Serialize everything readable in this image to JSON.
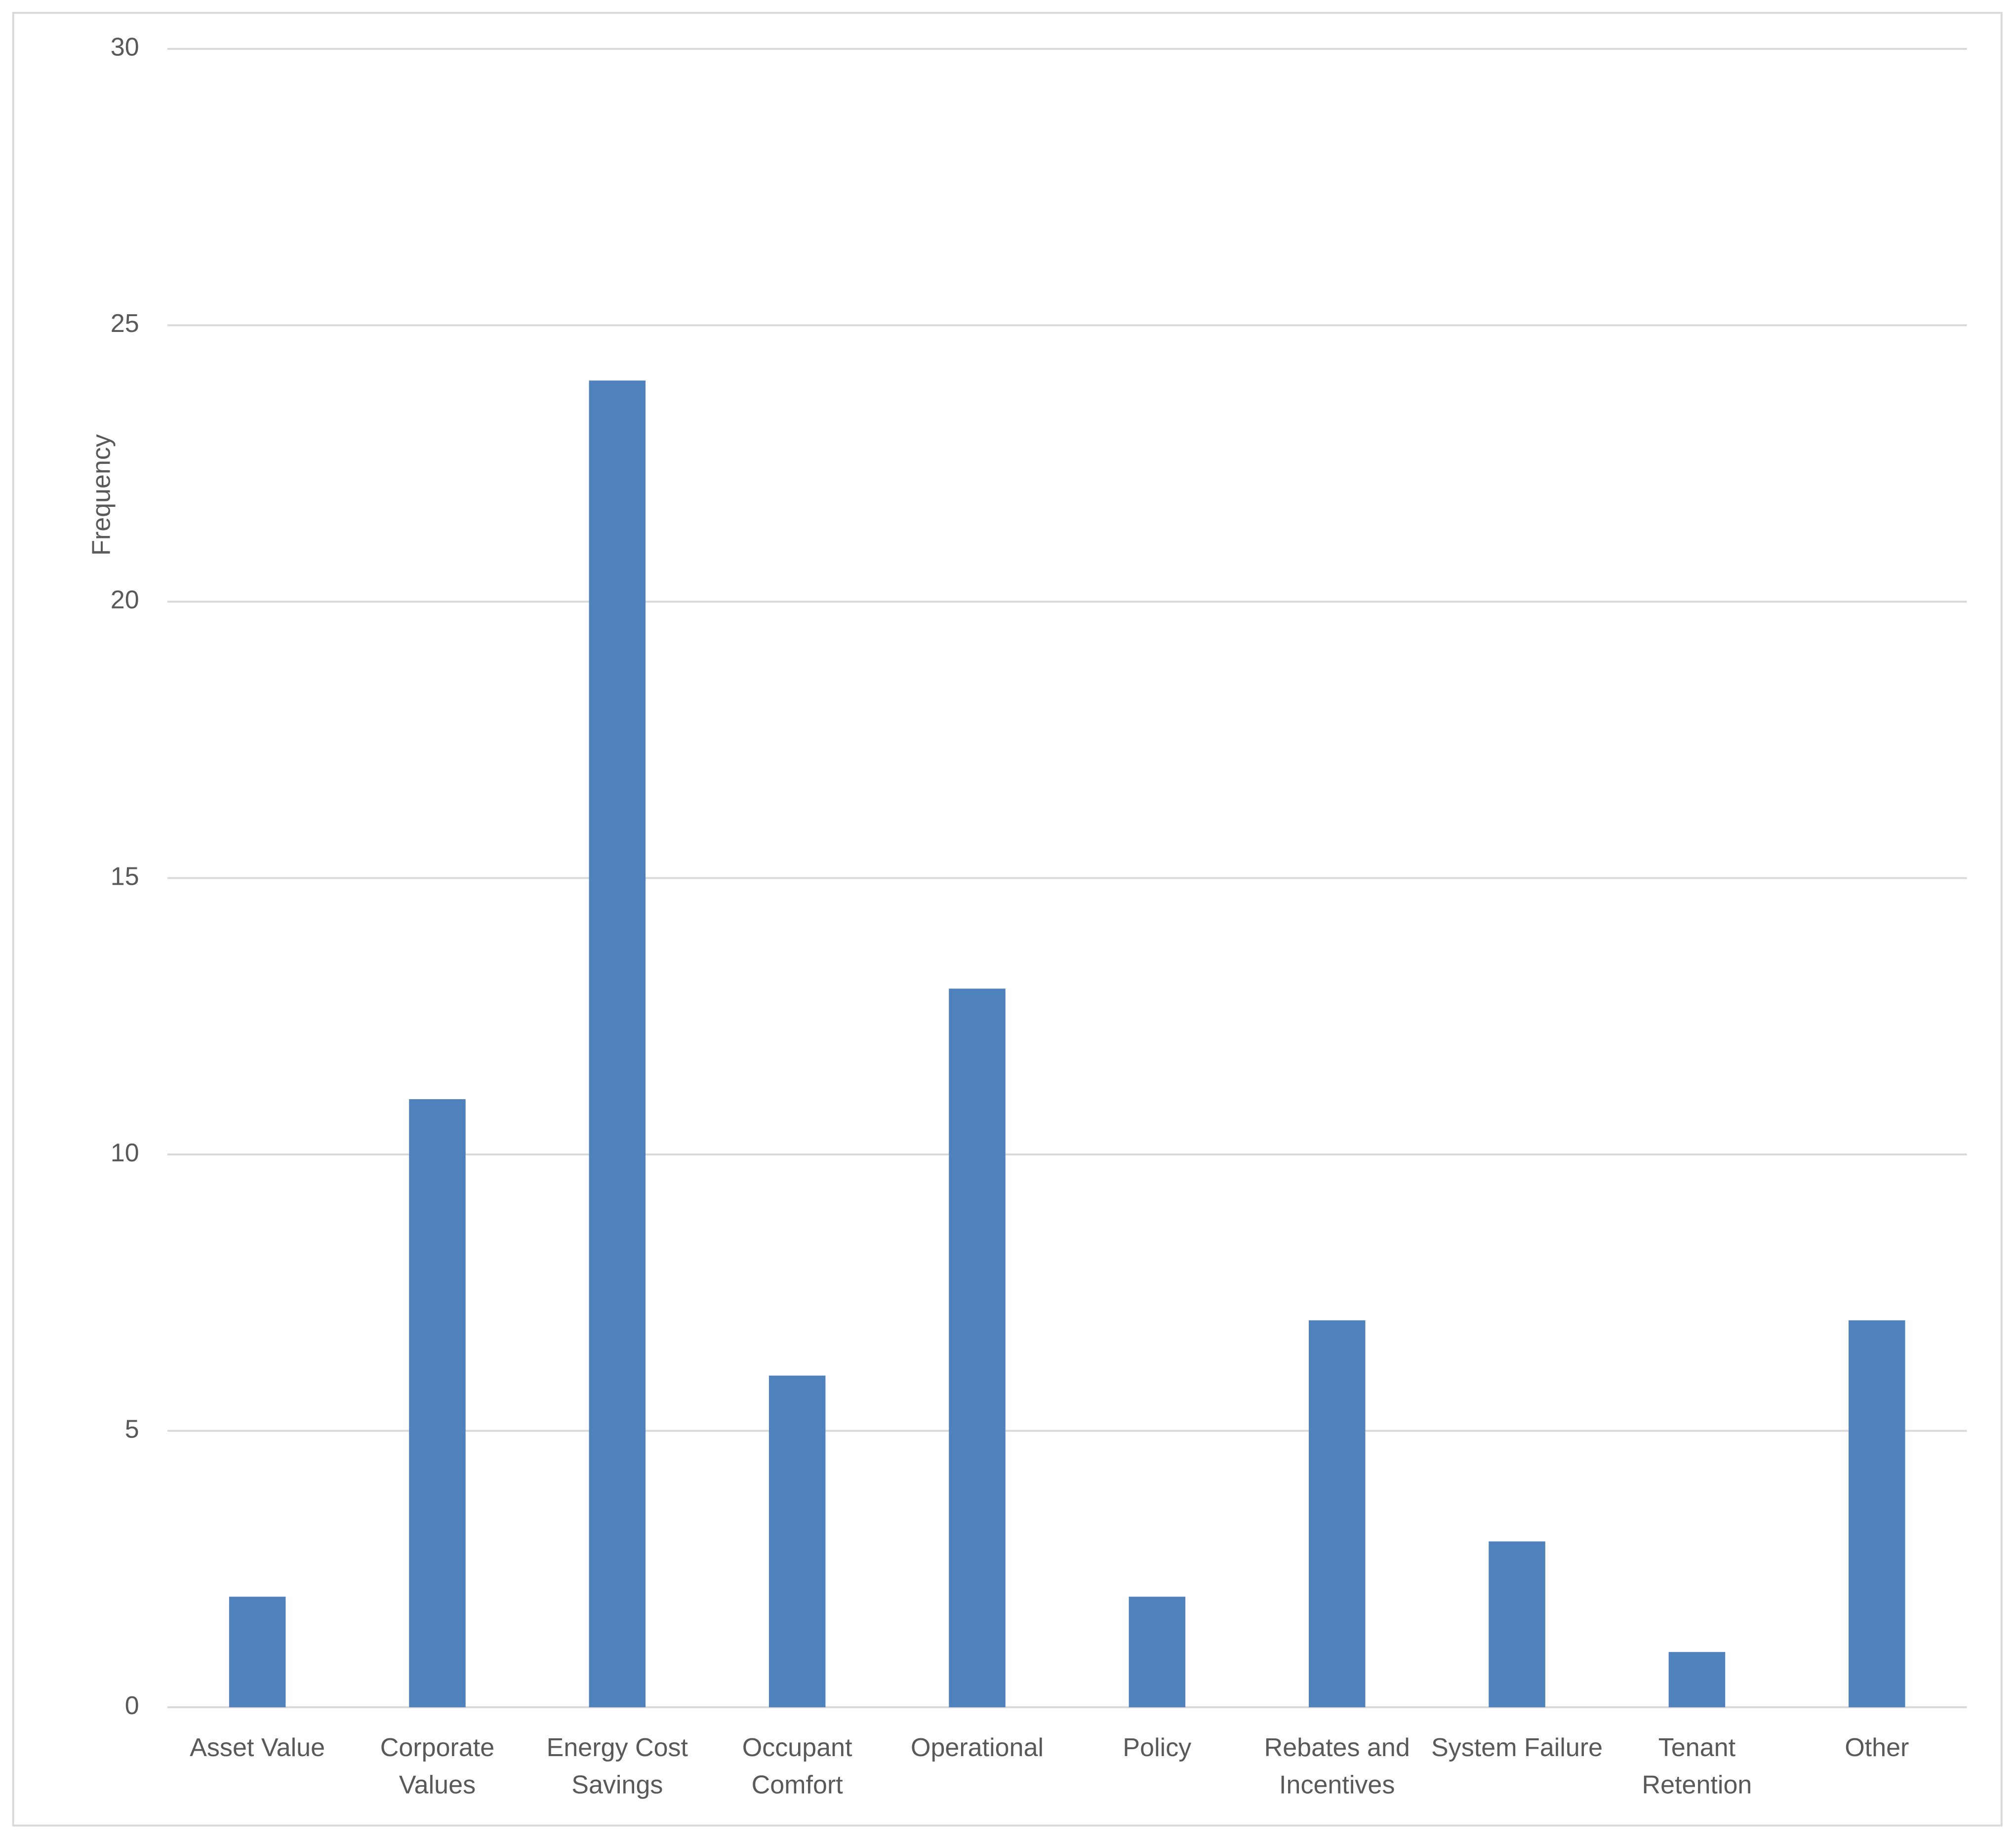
{
  "chart_data": {
    "type": "bar",
    "y_label": "Frequency",
    "categories": [
      "Asset Value",
      "Corporate Values",
      "Energy Cost Savings",
      "Occupant Comfort",
      "Operational",
      "Policy",
      "Rebates and Incentives",
      "System Failure",
      "Tenant Retention",
      "Other"
    ],
    "values": [
      2,
      11,
      24,
      6,
      13,
      2,
      7,
      3,
      1,
      7
    ],
    "color": "#4f81bd",
    "ylim": [
      0,
      30
    ],
    "yticks": [
      0,
      5,
      10,
      15,
      20,
      25,
      30
    ],
    "grid": true
  }
}
